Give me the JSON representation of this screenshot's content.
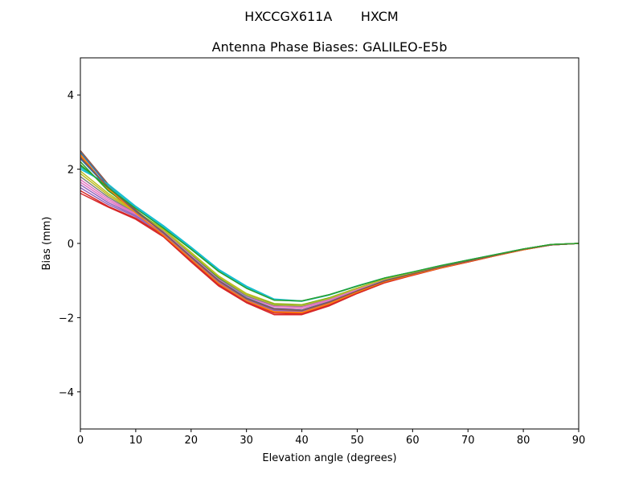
{
  "chart_data": {
    "type": "line",
    "suptitle": "HXCCGX611A       HXCM",
    "title": "Antenna Phase Biases: GALILEO-E5b",
    "xlabel": "Elevation angle (degrees)",
    "ylabel": "Bias (mm)",
    "xlim": [
      0,
      90
    ],
    "ylim": [
      -5,
      5
    ],
    "xticks": [
      0,
      10,
      20,
      30,
      40,
      50,
      60,
      70,
      80,
      90
    ],
    "xtick_labels": [
      "0",
      "10",
      "20",
      "30",
      "40",
      "50",
      "60",
      "70",
      "80",
      "90"
    ],
    "yticks": [
      -4,
      -2,
      0,
      2,
      4
    ],
    "ytick_labels": [
      "−4",
      "−2",
      "0",
      "2",
      "4"
    ],
    "grid": false,
    "legend": "none",
    "x": [
      0,
      5,
      10,
      15,
      20,
      25,
      30,
      35,
      40,
      45,
      50,
      55,
      60,
      65,
      70,
      75,
      80,
      85,
      90
    ],
    "series": [
      {
        "color": "#1f77b4",
        "values": [
          2.45,
          1.55,
          0.85,
          0.28,
          -0.38,
          -1.02,
          -1.5,
          -1.78,
          -1.82,
          -1.58,
          -1.28,
          -1.0,
          -0.82,
          -0.64,
          -0.48,
          -0.32,
          -0.16,
          -0.04,
          0.0
        ]
      },
      {
        "color": "#ff7f0e",
        "values": [
          2.35,
          1.45,
          0.8,
          0.2,
          -0.45,
          -1.1,
          -1.56,
          -1.86,
          -1.88,
          -1.64,
          -1.32,
          -1.04,
          -0.85,
          -0.67,
          -0.5,
          -0.33,
          -0.17,
          -0.04,
          0.0
        ]
      },
      {
        "color": "#2ca02c",
        "values": [
          2.1,
          1.5,
          0.95,
          0.42,
          -0.15,
          -0.75,
          -1.2,
          -1.52,
          -1.55,
          -1.38,
          -1.15,
          -0.93,
          -0.77,
          -0.6,
          -0.45,
          -0.3,
          -0.15,
          -0.03,
          0.0
        ]
      },
      {
        "color": "#d62728",
        "values": [
          1.35,
          0.98,
          0.65,
          0.18,
          -0.5,
          -1.15,
          -1.6,
          -1.92,
          -1.92,
          -1.68,
          -1.35,
          -1.06,
          -0.86,
          -0.67,
          -0.5,
          -0.33,
          -0.17,
          -0.04,
          0.0
        ]
      },
      {
        "color": "#9467bd",
        "values": [
          1.5,
          1.05,
          0.72,
          0.25,
          -0.42,
          -1.08,
          -1.55,
          -1.82,
          -1.84,
          -1.6,
          -1.3,
          -1.02,
          -0.84,
          -0.66,
          -0.49,
          -0.33,
          -0.16,
          -0.04,
          0.0
        ]
      },
      {
        "color": "#8c564b",
        "values": [
          2.5,
          1.6,
          0.9,
          0.3,
          -0.35,
          -1.0,
          -1.48,
          -1.75,
          -1.8,
          -1.57,
          -1.27,
          -1.0,
          -0.82,
          -0.64,
          -0.48,
          -0.32,
          -0.16,
          -0.04,
          0.0
        ]
      },
      {
        "color": "#e377c2",
        "values": [
          1.65,
          1.15,
          0.78,
          0.3,
          -0.36,
          -1.02,
          -1.48,
          -1.74,
          -1.76,
          -1.54,
          -1.26,
          -0.99,
          -0.81,
          -0.63,
          -0.47,
          -0.31,
          -0.16,
          -0.04,
          0.0
        ]
      },
      {
        "color": "#7f7f7f",
        "values": [
          1.8,
          1.25,
          0.82,
          0.34,
          -0.3,
          -0.95,
          -1.42,
          -1.68,
          -1.7,
          -1.5,
          -1.22,
          -0.97,
          -0.8,
          -0.62,
          -0.47,
          -0.31,
          -0.15,
          -0.03,
          0.0
        ]
      },
      {
        "color": "#bcbd22",
        "values": [
          1.95,
          1.35,
          0.86,
          0.38,
          -0.24,
          -0.88,
          -1.35,
          -1.62,
          -1.65,
          -1.46,
          -1.2,
          -0.96,
          -0.79,
          -0.61,
          -0.46,
          -0.31,
          -0.15,
          -0.03,
          0.0
        ]
      },
      {
        "color": "#17becf",
        "values": [
          2.0,
          1.6,
          1.0,
          0.48,
          -0.1,
          -0.7,
          -1.15,
          -1.5,
          -1.55,
          -1.38,
          -1.14,
          -0.93,
          -0.77,
          -0.6,
          -0.45,
          -0.3,
          -0.15,
          -0.03,
          0.0
        ]
      },
      {
        "color": "#2ca02c",
        "values": [
          2.2,
          1.42,
          0.88,
          0.35,
          -0.28,
          -0.92,
          -1.38,
          -1.64,
          -1.66,
          -1.47,
          -1.21,
          -0.96,
          -0.79,
          -0.62,
          -0.46,
          -0.31,
          -0.15,
          -0.03,
          0.0
        ]
      },
      {
        "color": "#d62728",
        "values": [
          1.42,
          1.0,
          0.68,
          0.22,
          -0.46,
          -1.12,
          -1.58,
          -1.88,
          -1.9,
          -1.66,
          -1.34,
          -1.05,
          -0.85,
          -0.66,
          -0.5,
          -0.33,
          -0.17,
          -0.04,
          0.0
        ]
      },
      {
        "color": "#9467bd",
        "values": [
          1.58,
          1.1,
          0.75,
          0.28,
          -0.4,
          -1.05,
          -1.52,
          -1.8,
          -1.82,
          -1.58,
          -1.29,
          -1.01,
          -0.83,
          -0.65,
          -0.48,
          -0.32,
          -0.16,
          -0.04,
          0.0
        ]
      },
      {
        "color": "#e377c2",
        "values": [
          1.72,
          1.2,
          0.8,
          0.32,
          -0.33,
          -0.98,
          -1.45,
          -1.7,
          -1.72,
          -1.52,
          -1.24,
          -0.98,
          -0.8,
          -0.63,
          -0.47,
          -0.31,
          -0.16,
          -0.04,
          0.0
        ]
      },
      {
        "color": "#bcbd22",
        "values": [
          1.88,
          1.3,
          0.84,
          0.36,
          -0.27,
          -0.9,
          -1.38,
          -1.65,
          -1.67,
          -1.48,
          -1.21,
          -0.96,
          -0.79,
          -0.61,
          -0.46,
          -0.31,
          -0.15,
          -0.03,
          0.0
        ]
      },
      {
        "color": "#17becf",
        "values": [
          2.05,
          1.55,
          0.97,
          0.45,
          -0.12,
          -0.72,
          -1.18,
          -1.52,
          -1.56,
          -1.39,
          -1.15,
          -0.93,
          -0.77,
          -0.6,
          -0.45,
          -0.3,
          -0.15,
          -0.03,
          0.0
        ]
      },
      {
        "color": "#1f77b4",
        "values": [
          2.28,
          1.5,
          0.86,
          0.3,
          -0.36,
          -1.0,
          -1.47,
          -1.76,
          -1.8,
          -1.57,
          -1.28,
          -1.0,
          -0.82,
          -0.64,
          -0.48,
          -0.32,
          -0.16,
          -0.04,
          0.0
        ]
      },
      {
        "color": "#ff7f0e",
        "values": [
          2.4,
          1.48,
          0.82,
          0.22,
          -0.43,
          -1.08,
          -1.54,
          -1.84,
          -1.86,
          -1.62,
          -1.31,
          -1.03,
          -0.84,
          -0.66,
          -0.49,
          -0.33,
          -0.17,
          -0.04,
          0.0
        ]
      },
      {
        "color": "#8c564b",
        "values": [
          2.32,
          1.52,
          0.88,
          0.29,
          -0.37,
          -1.01,
          -1.49,
          -1.77,
          -1.81,
          -1.58,
          -1.28,
          -1.01,
          -0.82,
          -0.64,
          -0.48,
          -0.32,
          -0.16,
          -0.04,
          0.0
        ]
      },
      {
        "color": "#2ca02c",
        "values": [
          2.12,
          1.5,
          0.94,
          0.41,
          -0.16,
          -0.76,
          -1.21,
          -1.53,
          -1.55,
          -1.38,
          -1.15,
          -0.93,
          -0.77,
          -0.6,
          -0.45,
          -0.3,
          -0.15,
          -0.03,
          0.0
        ]
      }
    ]
  }
}
